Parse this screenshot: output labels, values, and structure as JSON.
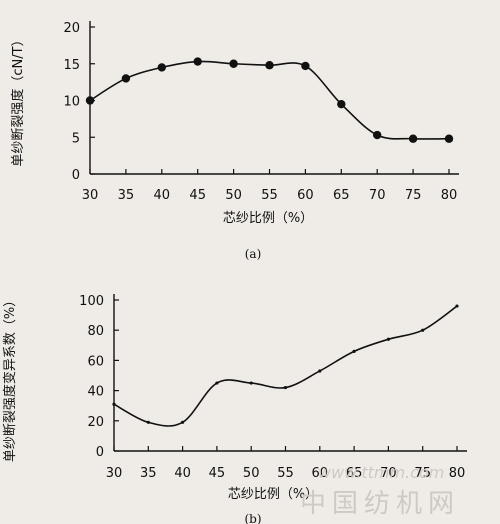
{
  "chart_data": [
    {
      "type": "line",
      "x": [
        30,
        35,
        40,
        45,
        50,
        55,
        60,
        65,
        70,
        75,
        80
      ],
      "y": [
        10,
        13,
        14.5,
        15.3,
        15,
        14.8,
        14.7,
        9.5,
        5.3,
        4.8,
        4.8
      ],
      "xlabel": "芯纱比例（%）",
      "ylabel": "单纱断裂强度（cN/T）",
      "xticks": [
        "30",
        "35",
        "40",
        "45",
        "50",
        "55",
        "60",
        "65",
        "70",
        "75",
        "80"
      ],
      "yticks": [
        "0",
        "5",
        "10",
        "15",
        "20"
      ],
      "xlim": [
        30,
        80
      ],
      "ylim": [
        0,
        20
      ],
      "panel_label": "(a)",
      "grid": false
    },
    {
      "type": "line",
      "x": [
        30,
        35,
        40,
        45,
        50,
        55,
        60,
        65,
        70,
        75,
        80
      ],
      "y": [
        31,
        19,
        19,
        45,
        45,
        42,
        53,
        66,
        74,
        80,
        96
      ],
      "xlabel": "芯纱比例（%）",
      "ylabel": "单纱断裂强度变异系数（%）",
      "xticks": [
        "30",
        "35",
        "40",
        "45",
        "50",
        "55",
        "60",
        "65",
        "70",
        "75",
        "80"
      ],
      "yticks": [
        "0",
        "20",
        "40",
        "60",
        "80",
        "100"
      ],
      "xlim": [
        30,
        80
      ],
      "ylim": [
        0,
        100
      ],
      "panel_label": "(b)",
      "grid": false
    }
  ],
  "watermark": "www.ttmm.com 中国纺机网"
}
